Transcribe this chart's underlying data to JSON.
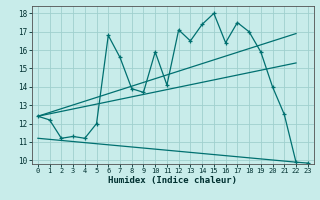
{
  "title": "",
  "xlabel": "Humidex (Indice chaleur)",
  "ylabel": "",
  "bg_color": "#c8ecea",
  "grid_color": "#a0d0ce",
  "line_color": "#007070",
  "xlim": [
    -0.5,
    23.5
  ],
  "ylim": [
    9.8,
    18.4
  ],
  "xticks": [
    0,
    1,
    2,
    3,
    4,
    5,
    6,
    7,
    8,
    9,
    10,
    11,
    12,
    13,
    14,
    15,
    16,
    17,
    18,
    19,
    20,
    21,
    22,
    23
  ],
  "yticks": [
    10,
    11,
    12,
    13,
    14,
    15,
    16,
    17,
    18
  ],
  "line1_x": [
    0,
    1,
    2,
    3,
    4,
    5,
    6,
    7,
    8,
    9,
    10,
    11,
    12,
    13,
    14,
    15,
    16,
    17,
    18,
    19,
    20,
    21,
    22,
    23
  ],
  "line1_y": [
    12.4,
    12.2,
    11.2,
    11.3,
    11.2,
    12.0,
    16.8,
    15.6,
    13.9,
    13.7,
    15.9,
    14.1,
    17.1,
    16.5,
    17.4,
    18.0,
    16.4,
    17.5,
    17.0,
    15.9,
    14.0,
    12.5,
    9.9,
    9.85
  ],
  "line2_x": [
    0,
    22
  ],
  "line2_y": [
    12.4,
    16.9
  ],
  "line3_x": [
    0,
    22
  ],
  "line3_y": [
    12.4,
    15.3
  ],
  "line4_x": [
    0,
    22
  ],
  "line4_y": [
    11.2,
    9.9
  ]
}
